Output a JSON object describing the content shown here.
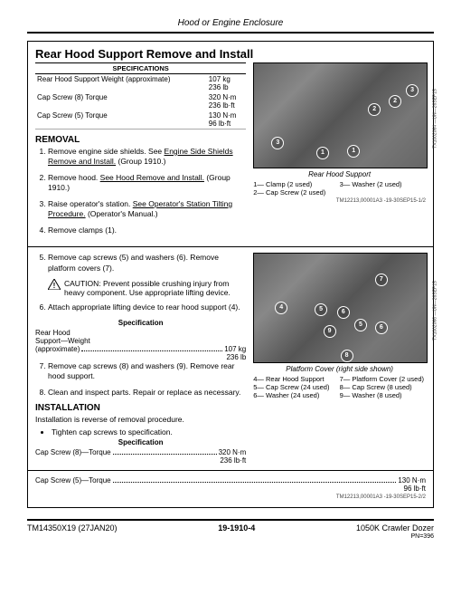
{
  "header": "Hood or Engine Enclosure",
  "title": "Rear Hood Support Remove and Install",
  "specTable": {
    "header": "SPECIFICATIONS",
    "rows": [
      {
        "label": "Rear Hood Support Weight (approximate)",
        "v1": "107 kg",
        "v2": "236 lb"
      },
      {
        "label": "Cap Screw (8) Torque",
        "v1": "320 N·m",
        "v2": "236 lb·ft"
      },
      {
        "label": "Cap Screw (5) Torque",
        "v1": "130 N·m",
        "v2": "96 lb·ft"
      }
    ]
  },
  "removalHead": "REMOVAL",
  "removalSteps": [
    {
      "t": "Remove engine side shields. See ",
      "u": "Engine Side Shields Remove and Install.",
      "a": " (Group 1910.)"
    },
    {
      "t": "Remove hood. ",
      "u": "See Hood Remove and Install.",
      "a": " (Group 1910.)"
    },
    {
      "t": "Raise operator's station. ",
      "u": "See Operator's Station Tilting Procedure.",
      "a": " (Operator's Manual.)"
    },
    {
      "t": "Remove clamps (1).",
      "u": "",
      "a": ""
    }
  ],
  "fig1": {
    "caption": "Rear Hood Support",
    "side": "TX1002064 —UN—26SEP15",
    "bubbles": [
      {
        "n": "3",
        "x": 10,
        "y": 70
      },
      {
        "n": "1",
        "x": 36,
        "y": 80
      },
      {
        "n": "1",
        "x": 54,
        "y": 78
      },
      {
        "n": "2",
        "x": 66,
        "y": 38
      },
      {
        "n": "2",
        "x": 78,
        "y": 30
      },
      {
        "n": "3",
        "x": 88,
        "y": 20
      }
    ],
    "legend": [
      "1— Clamp (2 used)",
      "3— Washer (2 used)",
      "2— Cap Screw (2 used)",
      ""
    ],
    "code": "TM12213,00001A3 -19-30SEP15-1/2"
  },
  "step5": "Remove cap screws (5) and washers (6). Remove platform covers (7).",
  "caution": "CAUTION: Prevent possible crushing injury from heavy component. Use appropriate lifting device.",
  "step6": "Attach appropriate lifting device to rear hood support (4).",
  "specInline": "Specification",
  "inlineSpec1": {
    "l": "Rear Hood",
    "l2": "Support—Weight",
    "l3": "(approximate)",
    "v1": "107 kg",
    "v2": "236 lb"
  },
  "step7": "Remove cap screws (8) and washers (9). Remove rear hood support.",
  "step8": "Clean and inspect parts. Repair or replace as necessary.",
  "installHead": "INSTALLATION",
  "installText": "Installation is reverse of removal procedure.",
  "installBullet": "Tighten cap screws to specification.",
  "inlineSpec2": {
    "l": "Cap Screw (8)—Torque",
    "v1": "320 N·m",
    "v2": "236 lb·ft"
  },
  "fig2": {
    "caption": "Platform Cover (right side shown)",
    "side": "TX1002066 —UN—26SEP15",
    "bubbles": [
      {
        "n": "7",
        "x": 70,
        "y": 18
      },
      {
        "n": "5",
        "x": 35,
        "y": 46
      },
      {
        "n": "6",
        "x": 48,
        "y": 48
      },
      {
        "n": "4",
        "x": 12,
        "y": 44
      },
      {
        "n": "9",
        "x": 40,
        "y": 66
      },
      {
        "n": "5",
        "x": 58,
        "y": 60
      },
      {
        "n": "6",
        "x": 70,
        "y": 62
      },
      {
        "n": "8",
        "x": 50,
        "y": 88
      }
    ],
    "legend": [
      "4— Rear Hood Support",
      "7— Platform Cover (2 used)",
      "5— Cap Screw (24 used)",
      "8— Cap Screw (8 used)",
      "6— Washer (24 used)",
      "9— Washer (8 used)"
    ]
  },
  "bottomSpec": {
    "l": "Cap Screw (5)—Torque",
    "v1": "130 N·m",
    "v2": "96 lb·ft"
  },
  "bottomCode": "TM12213,00001A3 -19-30SEP15-2/2",
  "footer": {
    "left": "TM14350X19 (27JAN20)",
    "center": "19-1910-4",
    "right": "1050K Crawler Dozer",
    "pn": "PN=396"
  }
}
